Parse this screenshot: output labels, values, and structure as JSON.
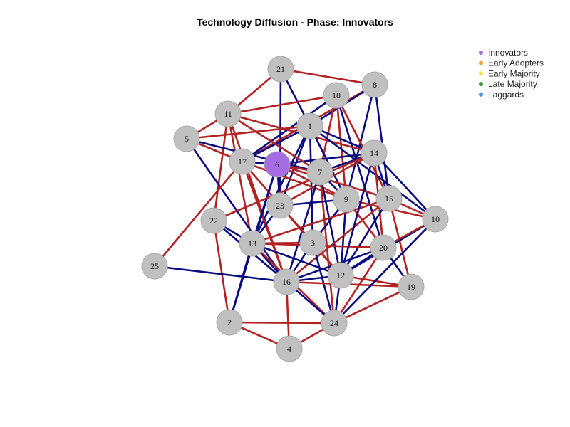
{
  "title": "Technology Diffusion - Phase: Innovators",
  "colors": {
    "edge_red": "#b22222",
    "edge_blue": "#0b0b80",
    "node_default": "#c0c0c0",
    "node_border": "#a9a9a9",
    "innovators": "#a56de2",
    "early_adopters": "#e8a33a",
    "early_majority": "#f0e442",
    "late_majority": "#3a9b3a",
    "laggards": "#4a8fe0"
  },
  "legend": [
    {
      "label": "Innovators",
      "color": "#a56de2"
    },
    {
      "label": "Early Adopters",
      "color": "#e8a33a"
    },
    {
      "label": "Early Majority",
      "color": "#f0e442"
    },
    {
      "label": "Late Majority",
      "color": "#3a9b3a"
    },
    {
      "label": "Laggards",
      "color": "#4a8fe0"
    }
  ],
  "nodes": [
    {
      "id": "1",
      "phase": "none"
    },
    {
      "id": "2",
      "phase": "none"
    },
    {
      "id": "3",
      "phase": "none"
    },
    {
      "id": "4",
      "phase": "none"
    },
    {
      "id": "5",
      "phase": "none"
    },
    {
      "id": "6",
      "phase": "innovators"
    },
    {
      "id": "7",
      "phase": "none"
    },
    {
      "id": "8",
      "phase": "none"
    },
    {
      "id": "9",
      "phase": "none"
    },
    {
      "id": "10",
      "phase": "none"
    },
    {
      "id": "11",
      "phase": "none"
    },
    {
      "id": "12",
      "phase": "none"
    },
    {
      "id": "13",
      "phase": "none"
    },
    {
      "id": "14",
      "phase": "none"
    },
    {
      "id": "15",
      "phase": "none"
    },
    {
      "id": "16",
      "phase": "none"
    },
    {
      "id": "17",
      "phase": "none"
    },
    {
      "id": "18",
      "phase": "none"
    },
    {
      "id": "19",
      "phase": "none"
    },
    {
      "id": "20",
      "phase": "none"
    },
    {
      "id": "21",
      "phase": "none"
    },
    {
      "id": "22",
      "phase": "none"
    },
    {
      "id": "23",
      "phase": "none"
    },
    {
      "id": "24",
      "phase": "none"
    },
    {
      "id": "25",
      "phase": "none"
    }
  ],
  "edges": [
    {
      "from": "21",
      "to": "8",
      "type": "red"
    },
    {
      "from": "21",
      "to": "1",
      "type": "blue"
    },
    {
      "from": "21",
      "to": "23",
      "type": "blue"
    },
    {
      "from": "8",
      "to": "17",
      "type": "red"
    },
    {
      "from": "8",
      "to": "9",
      "type": "blue"
    },
    {
      "from": "8",
      "to": "15",
      "type": "blue"
    },
    {
      "from": "8",
      "to": "1",
      "type": "blue"
    },
    {
      "from": "18",
      "to": "11",
      "type": "red"
    },
    {
      "from": "18",
      "to": "7",
      "type": "red"
    },
    {
      "from": "18",
      "to": "15",
      "type": "red"
    },
    {
      "from": "18",
      "to": "9",
      "type": "red"
    },
    {
      "from": "18",
      "to": "20",
      "type": "blue"
    },
    {
      "from": "18",
      "to": "17",
      "type": "blue"
    },
    {
      "from": "11",
      "to": "5",
      "type": "red"
    },
    {
      "from": "11",
      "to": "14",
      "type": "red"
    },
    {
      "from": "11",
      "to": "13",
      "type": "red"
    },
    {
      "from": "11",
      "to": "16",
      "type": "red"
    },
    {
      "from": "11",
      "to": "22",
      "type": "red"
    },
    {
      "from": "5",
      "to": "1",
      "type": "red"
    },
    {
      "from": "5",
      "to": "7",
      "type": "blue"
    },
    {
      "from": "5",
      "to": "16",
      "type": "blue"
    },
    {
      "from": "1",
      "to": "14",
      "type": "blue"
    },
    {
      "from": "1",
      "to": "17",
      "type": "blue"
    },
    {
      "from": "1",
      "to": "9",
      "type": "blue"
    },
    {
      "from": "1",
      "to": "13",
      "type": "blue"
    },
    {
      "from": "1",
      "to": "3",
      "type": "blue"
    },
    {
      "from": "1",
      "to": "23",
      "type": "blue"
    },
    {
      "from": "1",
      "to": "10",
      "type": "blue"
    },
    {
      "from": "17",
      "to": "6",
      "type": "blue"
    },
    {
      "from": "17",
      "to": "3",
      "type": "red"
    },
    {
      "from": "17",
      "to": "16",
      "type": "red"
    },
    {
      "from": "17",
      "to": "9",
      "type": "red"
    },
    {
      "from": "6",
      "to": "14",
      "type": "blue"
    },
    {
      "from": "6",
      "to": "7",
      "type": "red"
    },
    {
      "from": "6",
      "to": "9",
      "type": "red"
    },
    {
      "from": "6",
      "to": "23",
      "type": "blue"
    },
    {
      "from": "6",
      "to": "13",
      "type": "blue"
    },
    {
      "from": "6",
      "to": "2",
      "type": "blue"
    },
    {
      "from": "6",
      "to": "15",
      "type": "red"
    },
    {
      "from": "14",
      "to": "7",
      "type": "blue"
    },
    {
      "from": "14",
      "to": "15",
      "type": "blue"
    },
    {
      "from": "14",
      "to": "10",
      "type": "blue"
    },
    {
      "from": "14",
      "to": "20",
      "type": "red"
    },
    {
      "from": "14",
      "to": "22",
      "type": "red"
    },
    {
      "from": "14",
      "to": "23",
      "type": "red"
    },
    {
      "from": "7",
      "to": "12",
      "type": "blue"
    },
    {
      "from": "7",
      "to": "24",
      "type": "red"
    },
    {
      "from": "7",
      "to": "16",
      "type": "blue"
    },
    {
      "from": "7",
      "to": "9",
      "type": "blue"
    },
    {
      "from": "9",
      "to": "23",
      "type": "blue"
    },
    {
      "from": "9",
      "to": "12",
      "type": "blue"
    },
    {
      "from": "9",
      "to": "10",
      "type": "red"
    },
    {
      "from": "9",
      "to": "20",
      "type": "red"
    },
    {
      "from": "9",
      "to": "3",
      "type": "blue"
    },
    {
      "from": "15",
      "to": "10",
      "type": "red"
    },
    {
      "from": "15",
      "to": "19",
      "type": "red"
    },
    {
      "from": "15",
      "to": "16",
      "type": "red"
    },
    {
      "from": "15",
      "to": "12",
      "type": "blue"
    },
    {
      "from": "15",
      "to": "13",
      "type": "red"
    },
    {
      "from": "10",
      "to": "12",
      "type": "blue"
    },
    {
      "from": "10",
      "to": "20",
      "type": "red"
    },
    {
      "from": "20",
      "to": "19",
      "type": "blue"
    },
    {
      "from": "20",
      "to": "16",
      "type": "blue"
    },
    {
      "from": "20",
      "to": "12",
      "type": "blue"
    },
    {
      "from": "20",
      "to": "13",
      "type": "red"
    },
    {
      "from": "22",
      "to": "13",
      "type": "blue"
    },
    {
      "from": "22",
      "to": "2",
      "type": "red"
    },
    {
      "from": "22",
      "to": "16",
      "type": "blue"
    },
    {
      "from": "13",
      "to": "3",
      "type": "red"
    },
    {
      "from": "13",
      "to": "16",
      "type": "blue"
    },
    {
      "from": "13",
      "to": "12",
      "type": "blue"
    },
    {
      "from": "13",
      "to": "2",
      "type": "blue"
    },
    {
      "from": "13",
      "to": "24",
      "type": "red"
    },
    {
      "from": "3",
      "to": "16",
      "type": "blue"
    },
    {
      "from": "3",
      "to": "12",
      "type": "red"
    },
    {
      "from": "3",
      "to": "24",
      "type": "blue"
    },
    {
      "from": "23",
      "to": "13",
      "type": "blue"
    },
    {
      "from": "23",
      "to": "12",
      "type": "red"
    },
    {
      "from": "23",
      "to": "3",
      "type": "red"
    },
    {
      "from": "16",
      "to": "12",
      "type": "blue"
    },
    {
      "from": "16",
      "to": "4",
      "type": "red"
    },
    {
      "from": "16",
      "to": "19",
      "type": "red"
    },
    {
      "from": "16",
      "to": "24",
      "type": "blue"
    },
    {
      "from": "12",
      "to": "24",
      "type": "blue"
    },
    {
      "from": "12",
      "to": "19",
      "type": "red"
    },
    {
      "from": "19",
      "to": "24",
      "type": "red"
    },
    {
      "from": "24",
      "to": "4",
      "type": "red"
    },
    {
      "from": "24",
      "to": "10",
      "type": "blue"
    },
    {
      "from": "2",
      "to": "24",
      "type": "red"
    },
    {
      "from": "2",
      "to": "4",
      "type": "red"
    },
    {
      "from": "25",
      "to": "16",
      "type": "blue"
    },
    {
      "from": "25",
      "to": "17",
      "type": "red"
    },
    {
      "from": "21",
      "to": "11",
      "type": "red"
    },
    {
      "from": "5",
      "to": "17",
      "type": "red"
    },
    {
      "from": "11",
      "to": "7",
      "type": "red"
    },
    {
      "from": "12",
      "to": "14",
      "type": "blue"
    },
    {
      "from": "20",
      "to": "24",
      "type": "red"
    }
  ]
}
